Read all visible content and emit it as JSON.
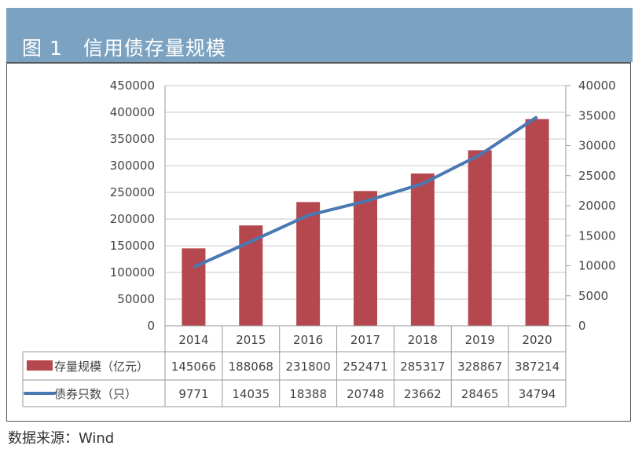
{
  "header": {
    "title": "图 1　信用债存量规模",
    "background": "#7ba3c1"
  },
  "chart_data": {
    "type": "bar+line",
    "categories": [
      "2014",
      "2015",
      "2016",
      "2017",
      "2018",
      "2019",
      "2020"
    ],
    "series": [
      {
        "name": "存量规模（亿元）",
        "type": "bar",
        "axis": "left",
        "color": "#b5474f",
        "values": [
          145066,
          188068,
          231800,
          252471,
          285317,
          328867,
          387214
        ]
      },
      {
        "name": "债券只数（只）",
        "type": "line",
        "axis": "right",
        "color": "#4a78b1",
        "values": [
          9771,
          14035,
          18388,
          20748,
          23662,
          28465,
          34794
        ]
      }
    ],
    "left_axis": {
      "ylim": [
        0,
        450000
      ],
      "ticks": [
        "0",
        "50000",
        "100000",
        "150000",
        "200000",
        "250000",
        "300000",
        "350000",
        "400000",
        "450000"
      ]
    },
    "right_axis": {
      "ylim": [
        0,
        40000
      ],
      "ticks": [
        "0",
        "5000",
        "10000",
        "15000",
        "20000",
        "25000",
        "30000",
        "35000",
        "40000"
      ]
    },
    "grid": true,
    "legend": "data-table-below"
  },
  "footer": {
    "source": "数据来源：Wind"
  }
}
